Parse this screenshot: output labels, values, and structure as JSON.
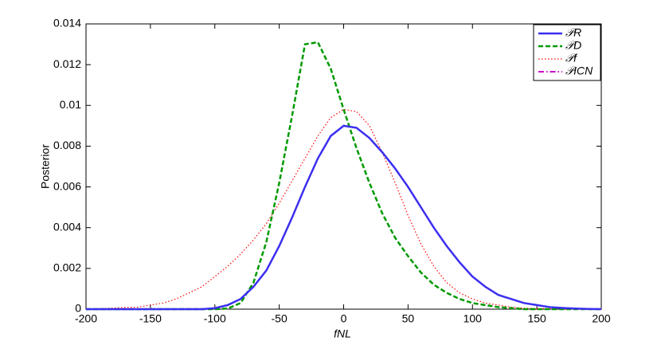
{
  "chart_data": {
    "type": "line",
    "xlabel": "fNL",
    "ylabel": "Posterior",
    "x": [
      -200,
      -190,
      -180,
      -170,
      -160,
      -150,
      -140,
      -130,
      -120,
      -110,
      -100,
      -90,
      -80,
      -70,
      -60,
      -50,
      -40,
      -30,
      -20,
      -10,
      0,
      10,
      20,
      30,
      40,
      50,
      60,
      70,
      80,
      90,
      100,
      110,
      120,
      130,
      140,
      150,
      160,
      170,
      180,
      190,
      200
    ],
    "series": [
      {
        "name": "𝒫R",
        "color": "#3b2ff0",
        "style": "solid",
        "values": [
          0,
          0,
          0,
          0,
          0,
          0,
          0,
          0,
          0,
          0,
          5e-05,
          0.0002,
          0.0005,
          0.0011,
          0.0019,
          0.0031,
          0.0045,
          0.006,
          0.0074,
          0.0085,
          0.009,
          0.0089,
          0.0084,
          0.0077,
          0.0069,
          0.006,
          0.005,
          0.004,
          0.0031,
          0.0023,
          0.0016,
          0.0011,
          0.0007,
          0.0005,
          0.0003,
          0.0002,
          0.0001,
          6e-05,
          3e-05,
          1e-05,
          0
        ]
      },
      {
        "name": "𝒫D",
        "color": "#009900",
        "style": "dashed",
        "values": [
          0,
          0,
          0,
          0,
          0,
          0,
          0,
          0,
          0,
          0,
          0,
          3e-05,
          0.0003,
          0.0013,
          0.0033,
          0.0062,
          0.0095,
          0.013,
          0.0131,
          0.0118,
          0.0098,
          0.0079,
          0.0062,
          0.0047,
          0.0035,
          0.0026,
          0.0018,
          0.0012,
          0.0008,
          0.0005,
          0.0003,
          0.0002,
          0.0001,
          5e-05,
          0,
          0,
          0,
          0,
          0,
          0,
          0
        ]
      },
      {
        "name": "𝒫f",
        "color": "#ff0000",
        "style": "dotted",
        "values": [
          0,
          2e-05,
          5e-05,
          8e-05,
          0.0001,
          0.0002,
          0.0003,
          0.0005,
          0.0008,
          0.0011,
          0.0016,
          0.0021,
          0.0027,
          0.0034,
          0.0042,
          0.0052,
          0.0063,
          0.0074,
          0.0085,
          0.0094,
          0.0098,
          0.0097,
          0.009,
          0.0077,
          0.0062,
          0.0046,
          0.0032,
          0.0021,
          0.0013,
          0.0008,
          0.0005,
          0.0003,
          0.0002,
          0.0001,
          5e-05,
          3e-05,
          2e-05,
          1e-05,
          0,
          0,
          0
        ]
      },
      {
        "name": "𝒫ICN",
        "color": "#cc00cc",
        "style": "dashdot",
        "values": [
          0,
          0,
          0,
          0,
          0,
          0,
          0,
          0,
          0,
          0,
          5e-05,
          0.0002,
          0.0005,
          0.0011,
          0.0019,
          0.0031,
          0.0045,
          0.006,
          0.0074,
          0.0085,
          0.009,
          0.0089,
          0.0084,
          0.0077,
          0.0069,
          0.006,
          0.005,
          0.004,
          0.0031,
          0.0023,
          0.0016,
          0.0011,
          0.0007,
          0.0005,
          0.0003,
          0.0002,
          0.0001,
          6e-05,
          3e-05,
          1e-05,
          0
        ]
      }
    ],
    "xlim": [
      -200,
      200
    ],
    "xticks": [
      -200,
      -150,
      -100,
      -50,
      0,
      50,
      100,
      150,
      200
    ],
    "ylim": [
      0,
      0.014
    ],
    "yticks": [
      0,
      0.002,
      0.004,
      0.006,
      0.008,
      0.01,
      0.012,
      0.014
    ],
    "legend": "upper right",
    "grid": false
  }
}
